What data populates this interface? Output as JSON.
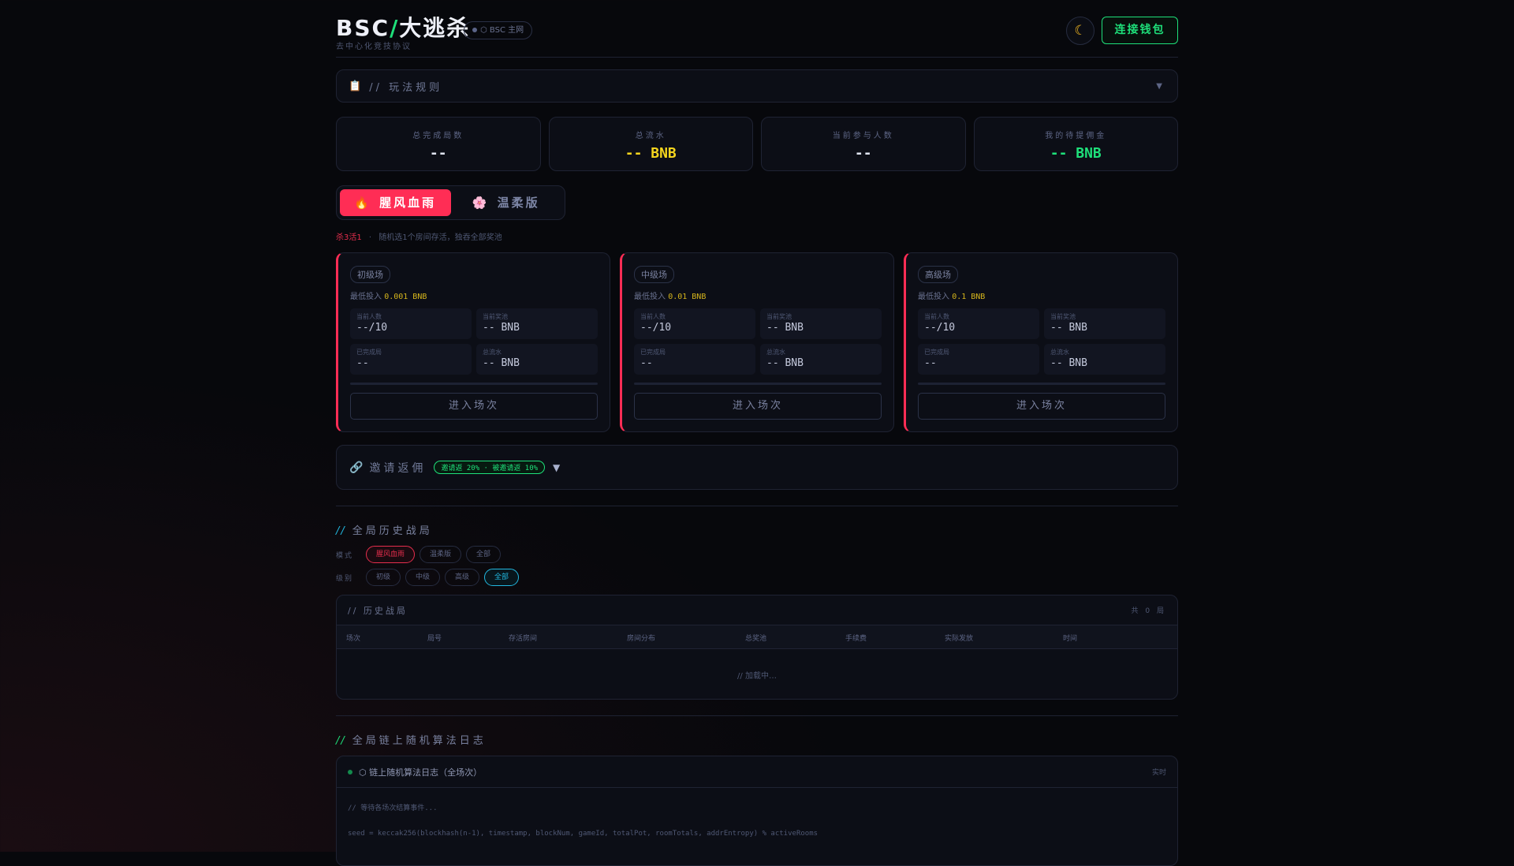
{
  "header": {
    "title_a": "BSC",
    "title_slash": "/",
    "title_b": "大逃杀",
    "network": "⬡ BSC 主网",
    "subtitle": "去中心化竞技协议",
    "theme_icon": "moon-icon",
    "connect": "连接钱包"
  },
  "rules": {
    "icon": "clipboard-icon",
    "label": "// 玩法规则"
  },
  "stats": [
    {
      "label": "总完成局数",
      "value": "--",
      "color": "#dfe3ef"
    },
    {
      "label": "总流水",
      "value": "-- BNB",
      "color": "#f5d51e"
    },
    {
      "label": "当前参与人数",
      "value": "--",
      "color": "#dfe3ef"
    },
    {
      "label": "我的待提佣金",
      "value": "-- BNB",
      "color": "#1ee07a"
    }
  ],
  "modes": [
    {
      "icon": "🔥",
      "label": "腥风血雨",
      "active": true
    },
    {
      "icon": "🌸",
      "label": "温柔版",
      "active": false
    }
  ],
  "mode_desc": {
    "key": "杀3活1",
    "sep": "·",
    "text": "随机选1个房间存活，独吞全部奖池"
  },
  "rooms": [
    {
      "name": "初级场",
      "min_label": "最低投入",
      "min": "0.001 BNB",
      "players_label": "当前人数",
      "players": "--/10",
      "pot_label": "当前奖池",
      "pot": "-- BNB",
      "done_label": "已完成局",
      "done": "--",
      "flow_label": "总流水",
      "flow": "-- BNB",
      "enter": "进入场次"
    },
    {
      "name": "中级场",
      "min_label": "最低投入",
      "min": "0.01 BNB",
      "players_label": "当前人数",
      "players": "--/10",
      "pot_label": "当前奖池",
      "pot": "-- BNB",
      "done_label": "已完成局",
      "done": "--",
      "flow_label": "总流水",
      "flow": "-- BNB",
      "enter": "进入场次"
    },
    {
      "name": "高级场",
      "min_label": "最低投入",
      "min": "0.1 BNB",
      "players_label": "当前人数",
      "players": "--/10",
      "pot_label": "当前奖池",
      "pot": "-- BNB",
      "done_label": "已完成局",
      "done": "--",
      "flow_label": "总流水",
      "flow": "-- BNB",
      "enter": "进入场次"
    }
  ],
  "invite": {
    "icon": "link-icon",
    "label": "邀请返佣",
    "badge": "邀请返 20% · 被邀请返 10%"
  },
  "history_section": {
    "slash": "//",
    "title": "全局历史战局",
    "mode_label": "模式",
    "modes": [
      "腥风血雨",
      "温柔版",
      "全部"
    ],
    "level_label": "级别",
    "levels": [
      "初级",
      "中级",
      "高级",
      "全部"
    ],
    "active_mode": 0,
    "active_level": 3
  },
  "history": {
    "title": "// 历史战局",
    "count": "共 0 局",
    "columns": [
      "场次",
      "局号",
      "存活房间",
      "房间分布",
      "总奖池",
      "手续费",
      "实际发放",
      "时间"
    ],
    "empty": "// 加载中…"
  },
  "log_section": {
    "slash": "//",
    "title": "全局链上随机算法日志"
  },
  "log": {
    "title": "⬡ 链上随机算法日志（全场次）",
    "live": "实时",
    "lines": [
      "// 等待各场次结算事件...",
      "seed = keccak256(blockhash(n-1), timestamp, blockNum, gameId, totalPot, roomTotals, addrEntropy) % activeRooms"
    ]
  }
}
